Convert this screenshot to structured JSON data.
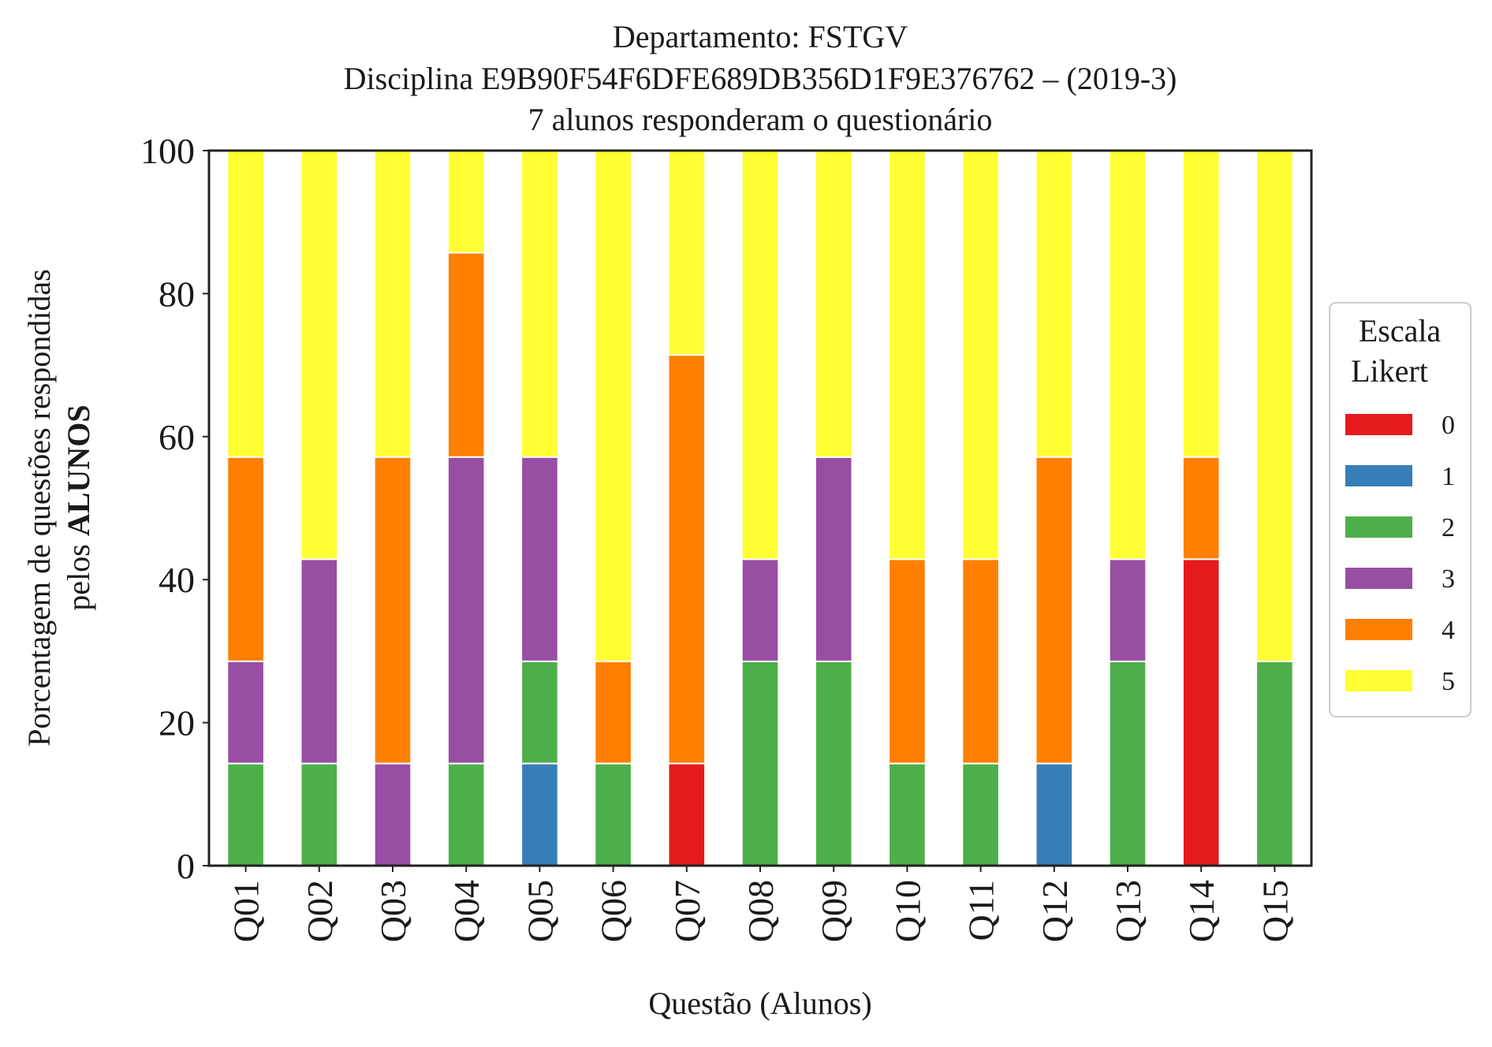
{
  "chart_data": {
    "type": "bar",
    "stacked": true,
    "title_lines": [
      "Departamento: FSTGV",
      "Disciplina E9B90F54F6DFE689DB356D1F9E376762 – (2019-3)",
      "7 alunos responderam o questionário"
    ],
    "xlabel": "Questão (Alunos)",
    "ylabel_line1": "Porcentagem de questões respondidas",
    "ylabel_line2_prefix": "pelos ",
    "ylabel_line2_bold": "ALUNOS",
    "ylim": [
      0,
      100
    ],
    "yticks": [
      "0",
      "20",
      "40",
      "60",
      "80",
      "100"
    ],
    "categories": [
      "Q01",
      "Q02",
      "Q03",
      "Q04",
      "Q05",
      "Q06",
      "Q07",
      "Q08",
      "Q09",
      "Q10",
      "Q11",
      "Q12",
      "Q13",
      "Q14",
      "Q15"
    ],
    "legend": {
      "title_line1": "Escala",
      "title_line2": "Likert",
      "position": "center-right, outside"
    },
    "series": [
      {
        "name": "0",
        "color": "#e41a1c",
        "values": [
          0,
          0,
          0,
          0,
          0,
          0,
          14.29,
          0,
          0,
          0,
          0,
          0,
          0,
          42.86,
          0
        ]
      },
      {
        "name": "1",
        "color": "#377eb8",
        "values": [
          0,
          0,
          0,
          0,
          14.29,
          0,
          0,
          0,
          0,
          0,
          0,
          14.29,
          0,
          0,
          0
        ]
      },
      {
        "name": "2",
        "color": "#4daf4a",
        "values": [
          14.29,
          14.29,
          0,
          14.29,
          14.29,
          14.29,
          0,
          28.57,
          28.57,
          14.29,
          14.29,
          0,
          28.57,
          0,
          28.57
        ]
      },
      {
        "name": "3",
        "color": "#984ea3",
        "values": [
          14.29,
          28.57,
          14.29,
          42.86,
          28.57,
          0,
          0,
          14.29,
          28.57,
          0,
          0,
          0,
          14.29,
          0,
          0
        ]
      },
      {
        "name": "4",
        "color": "#ff7f00",
        "values": [
          28.57,
          0,
          42.86,
          28.57,
          0,
          14.29,
          57.14,
          0,
          0,
          28.57,
          28.57,
          42.86,
          0,
          14.29,
          0
        ]
      },
      {
        "name": "5",
        "color": "#ffff33",
        "values": [
          42.86,
          57.14,
          42.86,
          14.29,
          42.86,
          71.43,
          28.57,
          57.14,
          42.86,
          57.14,
          57.14,
          42.86,
          57.14,
          42.86,
          71.43
        ]
      }
    ]
  }
}
